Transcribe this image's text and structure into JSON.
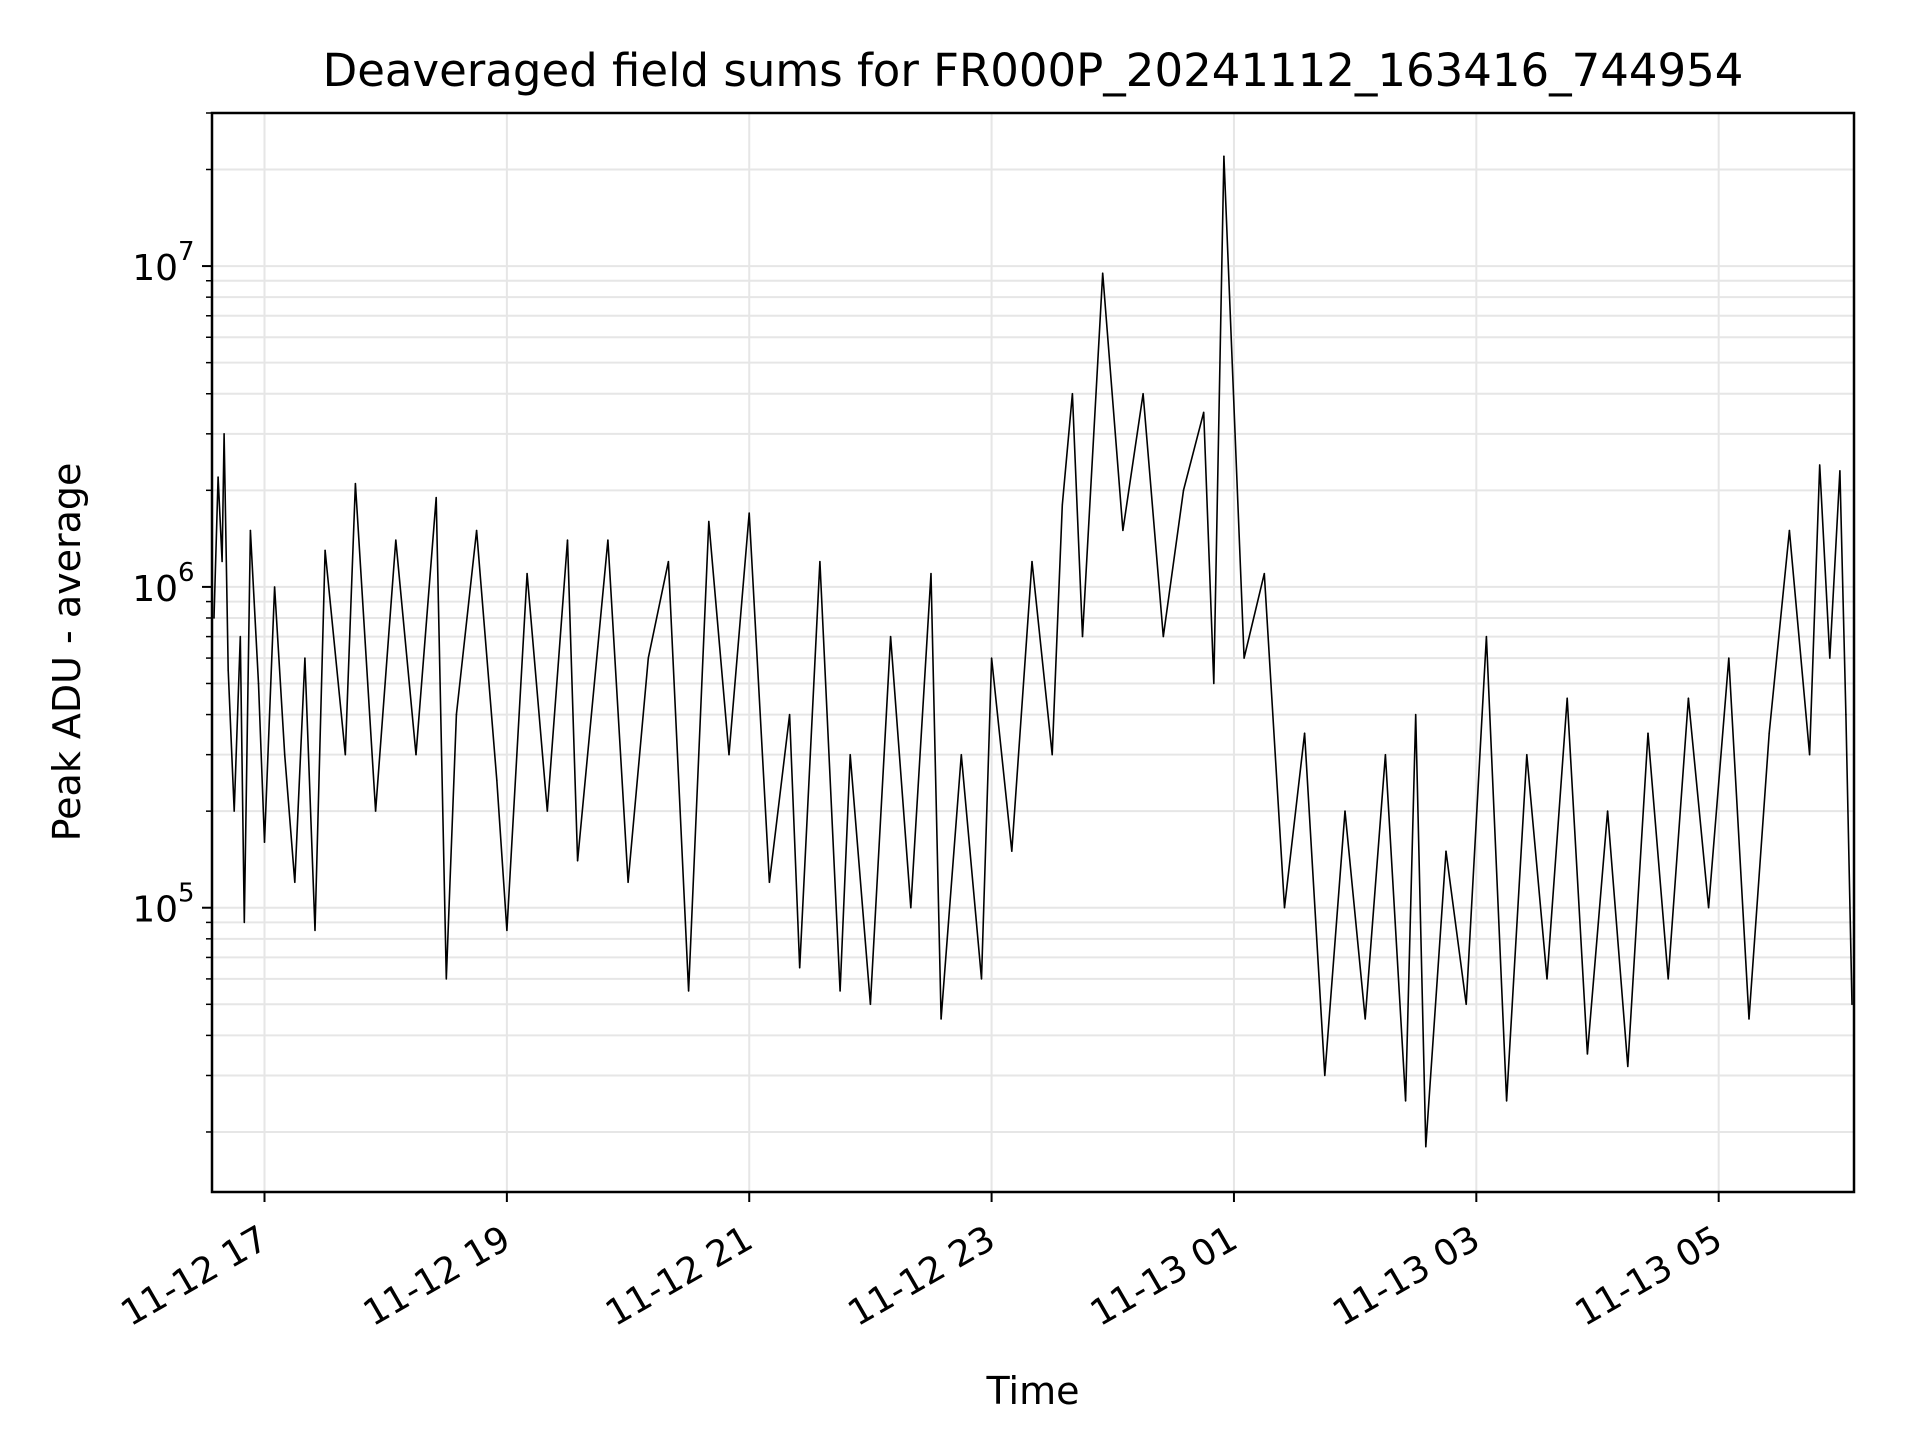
{
  "chart_data": {
    "type": "line",
    "title": "Deaveraged field sums for FR000P_20241112_163416_744954",
    "xlabel": "Time",
    "ylabel": "Peak ADU - average",
    "yscale": "log",
    "xlim": [
      "2024-11-12T16:34",
      "2024-11-13T06:07"
    ],
    "ylim": [
      13000,
      30000000
    ],
    "grid": true,
    "line_color": "#000000",
    "grid_color": "#e6e6e6",
    "x_ticks": [
      {
        "value": "2024-11-12T17:00",
        "label": "11-12 17"
      },
      {
        "value": "2024-11-12T19:00",
        "label": "11-12 19"
      },
      {
        "value": "2024-11-12T21:00",
        "label": "11-12 21"
      },
      {
        "value": "2024-11-12T23:00",
        "label": "11-12 23"
      },
      {
        "value": "2024-11-13T01:00",
        "label": "11-13 01"
      },
      {
        "value": "2024-11-13T03:00",
        "label": "11-13 03"
      },
      {
        "value": "2024-11-13T05:00",
        "label": "11-13 05"
      }
    ],
    "y_ticks": [
      {
        "value": 100000,
        "base": "10",
        "exponent": "5"
      },
      {
        "value": 1000000,
        "base": "10",
        "exponent": "6"
      },
      {
        "value": 10000000,
        "base": "10",
        "exponent": "7"
      }
    ],
    "series": [
      {
        "points": [
          [
            "2024-11-12T16:35",
            800000
          ],
          [
            "2024-11-12T16:37",
            2200000
          ],
          [
            "2024-11-12T16:39",
            1200000
          ],
          [
            "2024-11-12T16:40",
            3000000
          ],
          [
            "2024-11-12T16:42",
            550000
          ],
          [
            "2024-11-12T16:45",
            200000
          ],
          [
            "2024-11-12T16:48",
            700000
          ],
          [
            "2024-11-12T16:50",
            90000
          ],
          [
            "2024-11-12T16:53",
            1500000
          ],
          [
            "2024-11-12T16:57",
            500000
          ],
          [
            "2024-11-12T17:00",
            160000
          ],
          [
            "2024-11-12T17:05",
            1000000
          ],
          [
            "2024-11-12T17:10",
            300000
          ],
          [
            "2024-11-12T17:15",
            120000
          ],
          [
            "2024-11-12T17:20",
            600000
          ],
          [
            "2024-11-12T17:25",
            85000
          ],
          [
            "2024-11-12T17:30",
            1300000
          ],
          [
            "2024-11-12T17:40",
            300000
          ],
          [
            "2024-11-12T17:45",
            2100000
          ],
          [
            "2024-11-12T17:55",
            200000
          ],
          [
            "2024-11-12T18:05",
            1400000
          ],
          [
            "2024-11-12T18:15",
            300000
          ],
          [
            "2024-11-12T18:25",
            1900000
          ],
          [
            "2024-11-12T18:30",
            60000
          ],
          [
            "2024-11-12T18:35",
            400000
          ],
          [
            "2024-11-12T18:45",
            1500000
          ],
          [
            "2024-11-12T18:55",
            250000
          ],
          [
            "2024-11-12T19:00",
            85000
          ],
          [
            "2024-11-12T19:10",
            1100000
          ],
          [
            "2024-11-12T19:20",
            200000
          ],
          [
            "2024-11-12T19:30",
            1400000
          ],
          [
            "2024-11-12T19:35",
            140000
          ],
          [
            "2024-11-12T19:45",
            650000
          ],
          [
            "2024-11-12T19:50",
            1400000
          ],
          [
            "2024-11-12T20:00",
            120000
          ],
          [
            "2024-11-12T20:10",
            600000
          ],
          [
            "2024-11-12T20:20",
            1200000
          ],
          [
            "2024-11-12T20:30",
            55000
          ],
          [
            "2024-11-12T20:40",
            1600000
          ],
          [
            "2024-11-12T20:50",
            300000
          ],
          [
            "2024-11-12T21:00",
            1700000
          ],
          [
            "2024-11-12T21:10",
            120000
          ],
          [
            "2024-11-12T21:20",
            400000
          ],
          [
            "2024-11-12T21:25",
            65000
          ],
          [
            "2024-11-12T21:35",
            1200000
          ],
          [
            "2024-11-12T21:45",
            55000
          ],
          [
            "2024-11-12T21:50",
            300000
          ],
          [
            "2024-11-12T22:00",
            50000
          ],
          [
            "2024-11-12T22:10",
            700000
          ],
          [
            "2024-11-12T22:20",
            100000
          ],
          [
            "2024-11-12T22:30",
            1100000
          ],
          [
            "2024-11-12T22:35",
            45000
          ],
          [
            "2024-11-12T22:45",
            300000
          ],
          [
            "2024-11-12T22:55",
            60000
          ],
          [
            "2024-11-12T23:00",
            600000
          ],
          [
            "2024-11-12T23:10",
            150000
          ],
          [
            "2024-11-12T23:20",
            1200000
          ],
          [
            "2024-11-12T23:30",
            300000
          ],
          [
            "2024-11-12T23:35",
            1800000
          ],
          [
            "2024-11-12T23:40",
            4000000
          ],
          [
            "2024-11-12T23:45",
            700000
          ],
          [
            "2024-11-12T23:55",
            9500000
          ],
          [
            "2024-11-13T00:05",
            1500000
          ],
          [
            "2024-11-13T00:15",
            4000000
          ],
          [
            "2024-11-13T00:25",
            700000
          ],
          [
            "2024-11-13T00:35",
            2000000
          ],
          [
            "2024-11-13T00:45",
            3500000
          ],
          [
            "2024-11-13T00:50",
            500000
          ],
          [
            "2024-11-13T00:55",
            22000000
          ],
          [
            "2024-11-13T01:05",
            600000
          ],
          [
            "2024-11-13T01:15",
            1100000
          ],
          [
            "2024-11-13T01:25",
            100000
          ],
          [
            "2024-11-13T01:35",
            350000
          ],
          [
            "2024-11-13T01:45",
            30000
          ],
          [
            "2024-11-13T01:55",
            200000
          ],
          [
            "2024-11-13T02:05",
            45000
          ],
          [
            "2024-11-13T02:15",
            300000
          ],
          [
            "2024-11-13T02:25",
            25000
          ],
          [
            "2024-11-13T02:30",
            400000
          ],
          [
            "2024-11-13T02:35",
            18000
          ],
          [
            "2024-11-13T02:45",
            150000
          ],
          [
            "2024-11-13T02:55",
            50000
          ],
          [
            "2024-11-13T03:05",
            700000
          ],
          [
            "2024-11-13T03:15",
            25000
          ],
          [
            "2024-11-13T03:25",
            300000
          ],
          [
            "2024-11-13T03:35",
            60000
          ],
          [
            "2024-11-13T03:45",
            450000
          ],
          [
            "2024-11-13T03:55",
            35000
          ],
          [
            "2024-11-13T04:05",
            200000
          ],
          [
            "2024-11-13T04:15",
            32000
          ],
          [
            "2024-11-13T04:25",
            350000
          ],
          [
            "2024-11-13T04:35",
            60000
          ],
          [
            "2024-11-13T04:45",
            450000
          ],
          [
            "2024-11-13T04:55",
            100000
          ],
          [
            "2024-11-13T05:05",
            600000
          ],
          [
            "2024-11-13T05:15",
            45000
          ],
          [
            "2024-11-13T05:25",
            350000
          ],
          [
            "2024-11-13T05:35",
            1500000
          ],
          [
            "2024-11-13T05:45",
            300000
          ],
          [
            "2024-11-13T05:50",
            2400000
          ],
          [
            "2024-11-13T05:55",
            600000
          ],
          [
            "2024-11-13T06:00",
            2300000
          ],
          [
            "2024-11-13T06:03",
            400000
          ],
          [
            "2024-11-13T06:06",
            50000
          ]
        ]
      }
    ]
  }
}
